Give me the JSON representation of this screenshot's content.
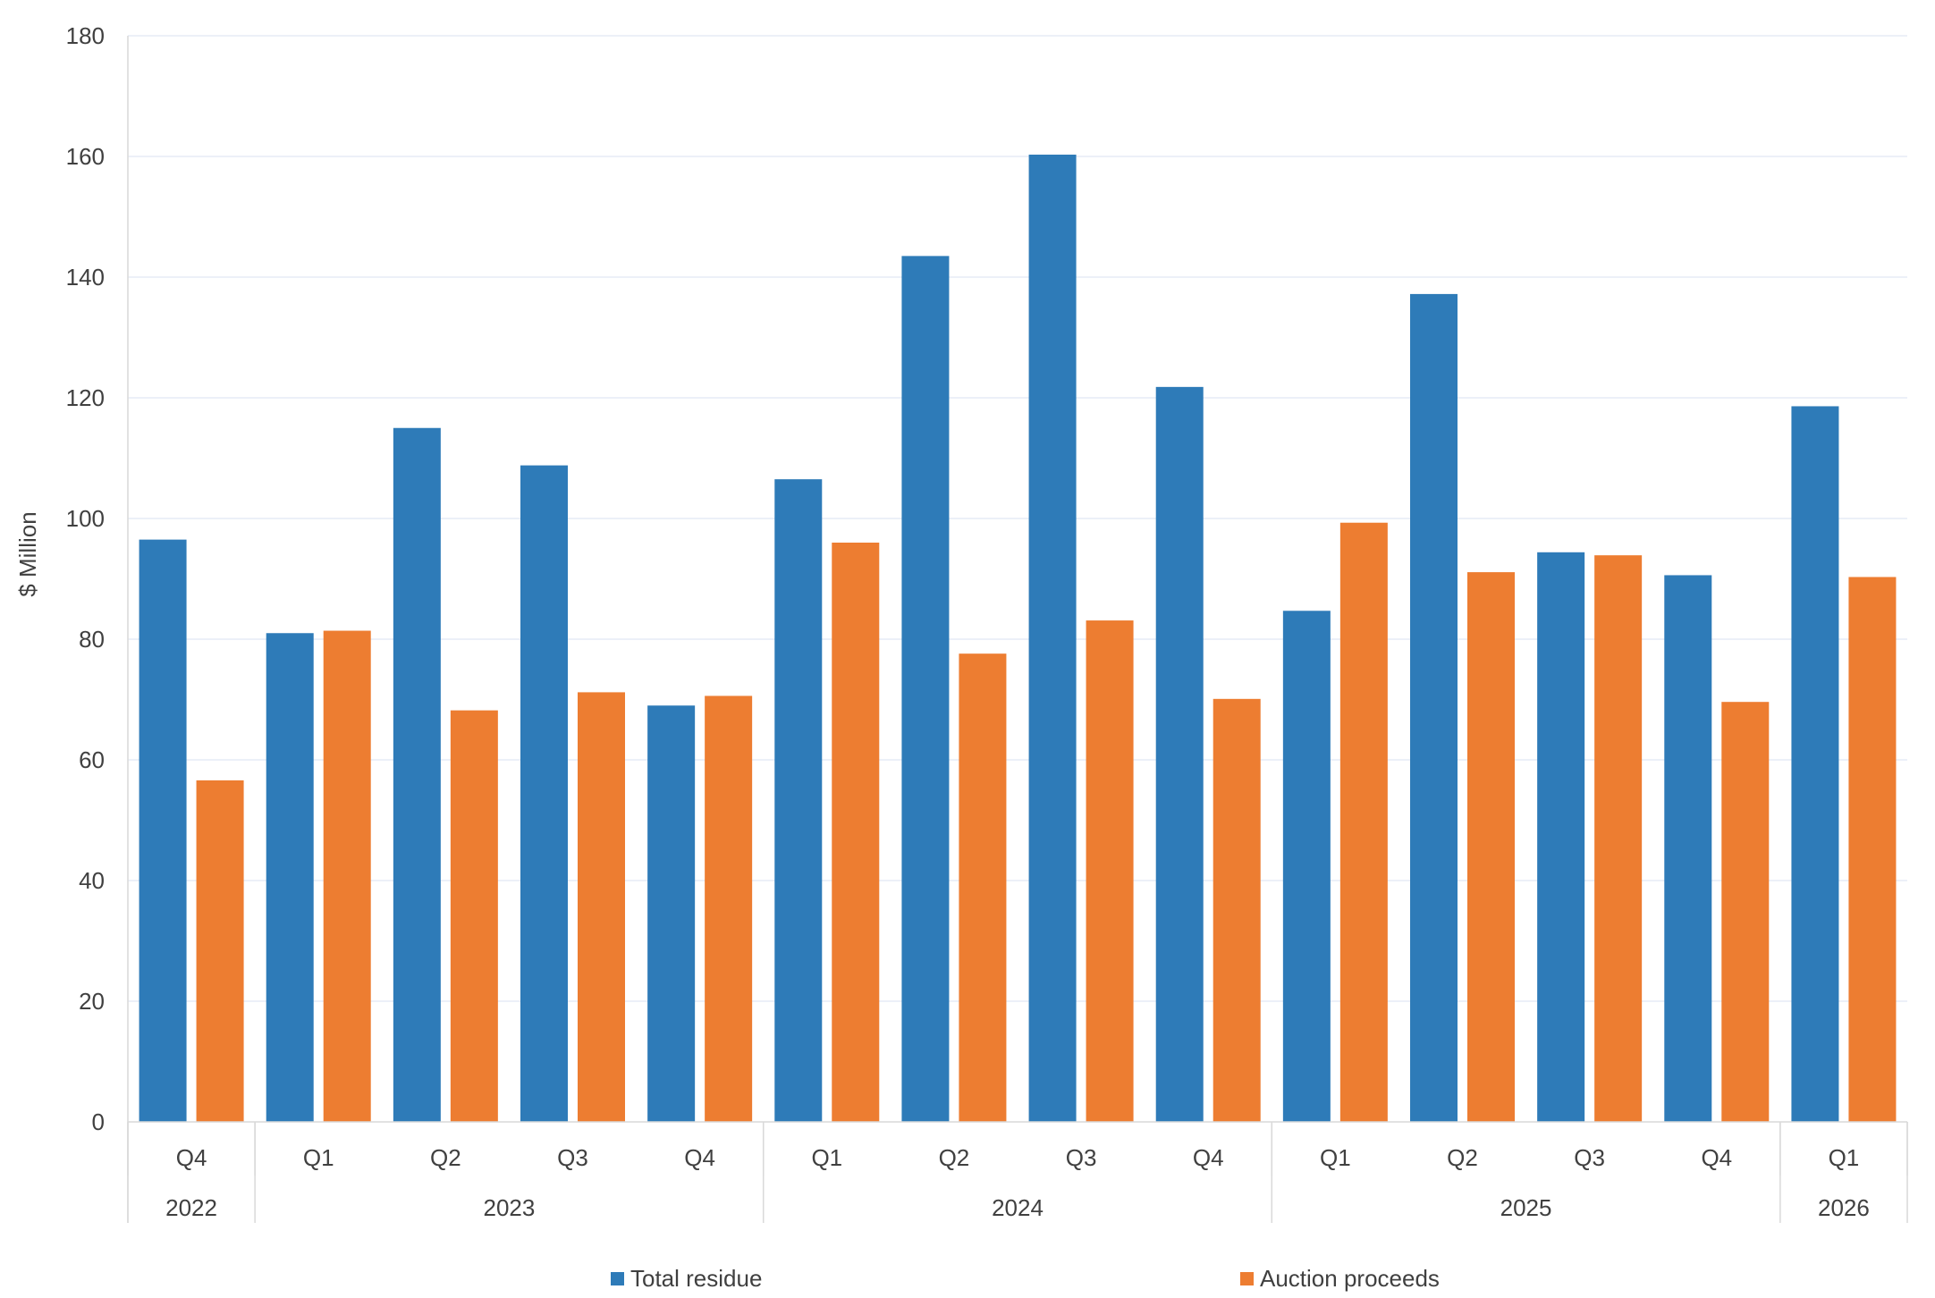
{
  "chart_data": {
    "type": "bar",
    "title": "",
    "xlabel": "",
    "ylabel": "$ Million",
    "ylim": [
      0,
      180
    ],
    "yticks": [
      0,
      20,
      40,
      60,
      80,
      100,
      120,
      140,
      160,
      180
    ],
    "grid": true,
    "legend_position": "bottom",
    "categories": [
      "Q4",
      "Q1",
      "Q2",
      "Q3",
      "Q4",
      "Q1",
      "Q2",
      "Q3",
      "Q4",
      "Q1",
      "Q2",
      "Q3",
      "Q4",
      "Q1"
    ],
    "year_groups": [
      {
        "label": "2022",
        "count": 1
      },
      {
        "label": "2023",
        "count": 4
      },
      {
        "label": "2024",
        "count": 4
      },
      {
        "label": "2025",
        "count": 4
      },
      {
        "label": "2026",
        "count": 1
      }
    ],
    "series": [
      {
        "name": "Total residue",
        "color": "#2E7BB8",
        "values": [
          96.5,
          81,
          115,
          108.8,
          69,
          106.5,
          143.5,
          160.3,
          121.8,
          84.7,
          137.2,
          94.4,
          90.6,
          118.6
        ]
      },
      {
        "name": "Auction proceeds",
        "color": "#ED7D31",
        "values": [
          56.6,
          81.4,
          68.2,
          71.2,
          70.6,
          96,
          77.6,
          83.1,
          70.1,
          99.3,
          91.1,
          93.9,
          69.6,
          90.3
        ]
      }
    ]
  },
  "colors": {
    "gridline": "#E6ECF5",
    "axis_line": "#D9D9D9",
    "text": "#404040"
  }
}
